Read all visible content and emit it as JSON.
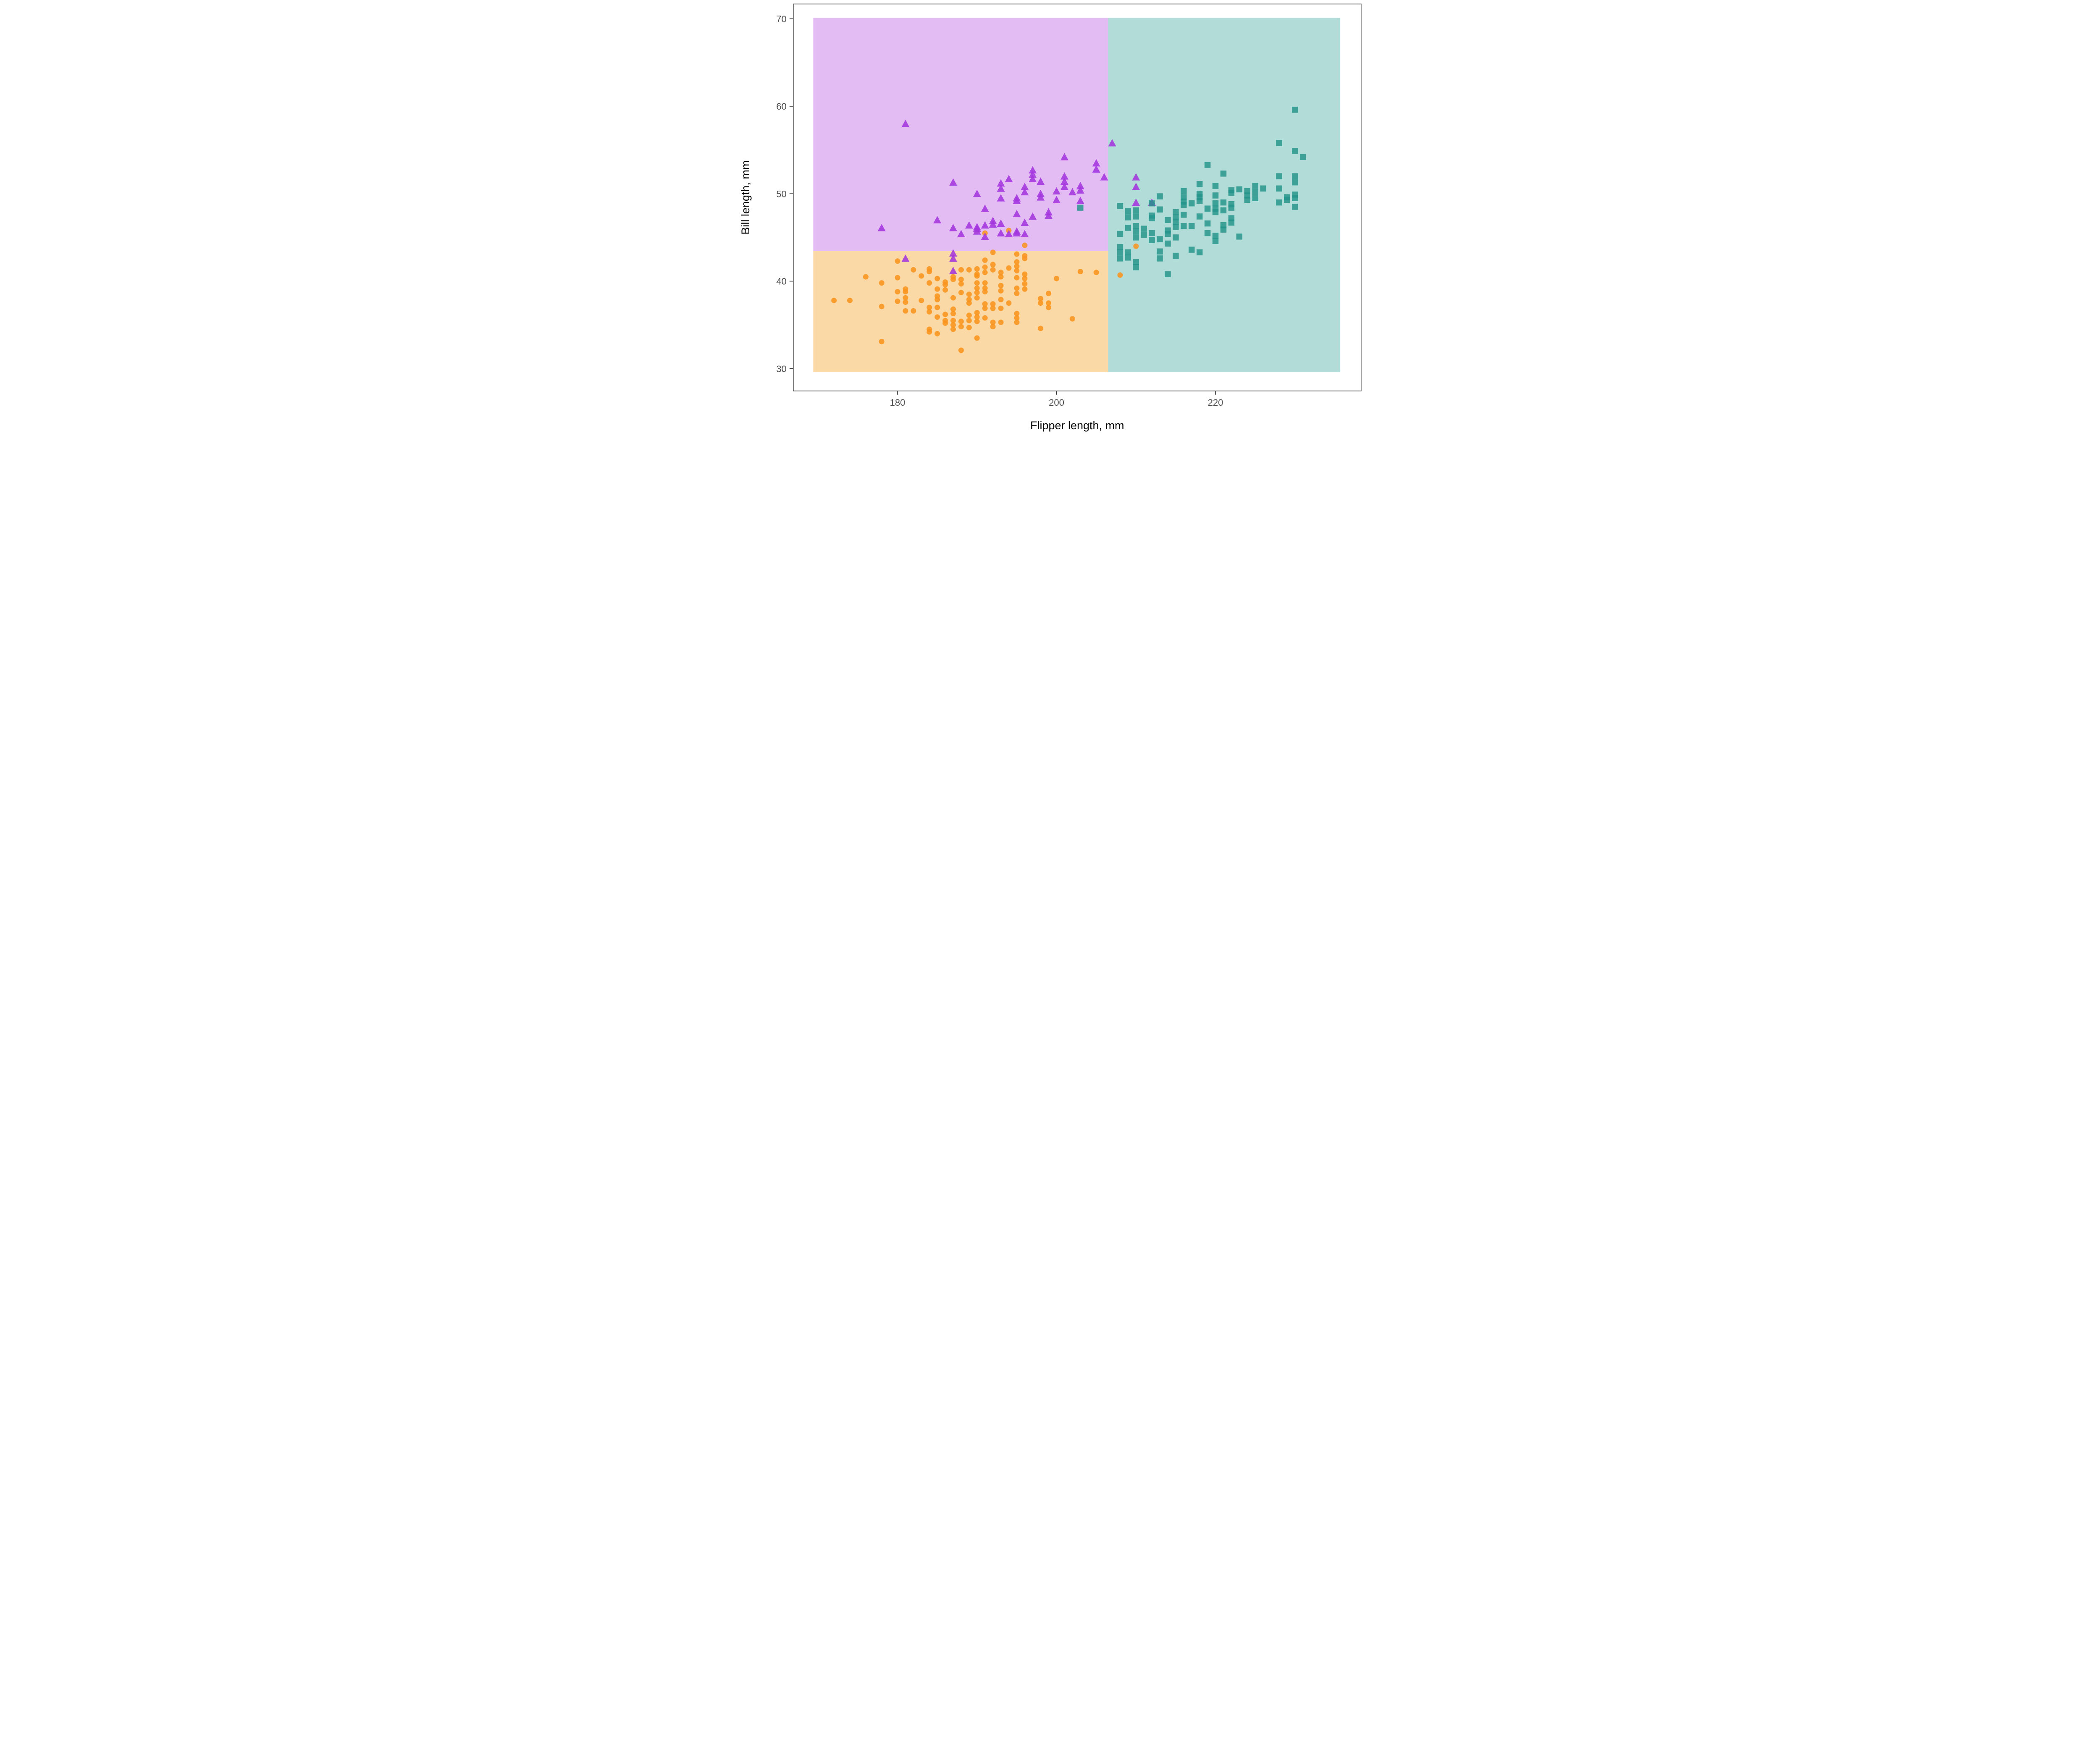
{
  "chart_data": {
    "type": "scatter",
    "title": "",
    "xlabel": "Flipper length, mm",
    "ylabel": "Bill length, mm",
    "x_ticks": [
      180,
      200,
      220
    ],
    "y_ticks": [
      70,
      60,
      50,
      40,
      30
    ],
    "xlim": [
      169.4,
      235.7
    ],
    "ylim": [
      29.6,
      70.1
    ],
    "grid": false,
    "legend": "none",
    "axis_text_color": "#4d4d4d",
    "axis_title_color": "#000000",
    "panel_border_color": "#333333",
    "decision_regions": [
      {
        "name": "purple-region",
        "color": "#E3BCF4",
        "x_min": 169.4,
        "x_max": 206.5,
        "y_min": 43.45,
        "y_max": 70.1
      },
      {
        "name": "orange-region",
        "color": "#FBD9A6",
        "x_min": 169.4,
        "x_max": 206.5,
        "y_min": 29.6,
        "y_max": 43.45
      },
      {
        "name": "teal-region",
        "color": "#B2DCD8",
        "x_min": 206.5,
        "x_max": 235.7,
        "y_min": 29.6,
        "y_max": 70.1
      }
    ],
    "series": [
      {
        "name": "orange-circles",
        "marker": "circle",
        "color": "#F8941E",
        "points": [
          [
            172,
            37.8
          ],
          [
            174,
            37.8
          ],
          [
            176,
            40.5
          ],
          [
            178,
            39.8
          ],
          [
            178,
            37.1
          ],
          [
            178,
            33.1
          ],
          [
            180,
            42.3
          ],
          [
            180,
            40.4
          ],
          [
            180,
            38.8
          ],
          [
            180,
            37.7
          ],
          [
            181,
            39.1
          ],
          [
            181,
            38.8
          ],
          [
            181,
            38.1
          ],
          [
            181,
            37.6
          ],
          [
            181,
            36.6
          ],
          [
            182,
            41.3
          ],
          [
            182,
            36.6
          ],
          [
            183,
            40.6
          ],
          [
            183,
            37.8
          ],
          [
            184,
            41.4
          ],
          [
            184,
            41.1
          ],
          [
            184,
            39.8
          ],
          [
            184,
            37.0
          ],
          [
            184,
            36.5
          ],
          [
            184,
            34.5
          ],
          [
            184,
            34.2
          ],
          [
            185,
            40.3
          ],
          [
            185,
            39.1
          ],
          [
            185,
            38.3
          ],
          [
            185,
            37.9
          ],
          [
            185,
            37.0
          ],
          [
            185,
            35.9
          ],
          [
            185,
            34.0
          ],
          [
            186,
            39.9
          ],
          [
            186,
            39.6
          ],
          [
            186,
            39.0
          ],
          [
            186,
            36.2
          ],
          [
            186,
            35.5
          ],
          [
            186,
            35.2
          ],
          [
            187,
            40.5
          ],
          [
            187,
            40.2
          ],
          [
            187,
            38.1
          ],
          [
            187,
            36.8
          ],
          [
            187,
            36.3
          ],
          [
            187,
            35.5
          ],
          [
            187,
            35.0
          ],
          [
            187,
            34.5
          ],
          [
            188,
            41.3
          ],
          [
            188,
            40.2
          ],
          [
            188,
            39.7
          ],
          [
            188,
            38.7
          ],
          [
            188,
            35.4
          ],
          [
            188,
            34.8
          ],
          [
            188,
            32.1
          ],
          [
            189,
            41.3
          ],
          [
            189,
            38.5
          ],
          [
            189,
            37.9
          ],
          [
            189,
            37.5
          ],
          [
            189,
            36.1
          ],
          [
            189,
            35.5
          ],
          [
            189,
            34.7
          ],
          [
            190,
            41.4
          ],
          [
            190,
            40.8
          ],
          [
            190,
            40.6
          ],
          [
            190,
            39.8
          ],
          [
            190,
            39.2
          ],
          [
            190,
            38.7
          ],
          [
            190,
            38.1
          ],
          [
            190,
            36.4
          ],
          [
            190,
            35.9
          ],
          [
            190,
            35.4
          ],
          [
            190,
            33.5
          ],
          [
            191,
            45.5
          ],
          [
            191,
            42.4
          ],
          [
            191,
            41.6
          ],
          [
            191,
            41.0
          ],
          [
            191,
            39.8
          ],
          [
            191,
            39.2
          ],
          [
            191,
            38.8
          ],
          [
            191,
            37.4
          ],
          [
            191,
            36.9
          ],
          [
            191,
            35.8
          ],
          [
            192,
            43.3
          ],
          [
            192,
            41.9
          ],
          [
            192,
            41.3
          ],
          [
            192,
            37.4
          ],
          [
            192,
            36.9
          ],
          [
            192,
            35.3
          ],
          [
            192,
            34.8
          ],
          [
            193,
            41.0
          ],
          [
            193,
            40.5
          ],
          [
            193,
            39.5
          ],
          [
            193,
            38.9
          ],
          [
            193,
            37.9
          ],
          [
            193,
            36.9
          ],
          [
            193,
            35.3
          ],
          [
            194,
            45.8
          ],
          [
            194,
            41.5
          ],
          [
            194,
            37.5
          ],
          [
            195,
            43.1
          ],
          [
            195,
            42.2
          ],
          [
            195,
            41.7
          ],
          [
            195,
            41.2
          ],
          [
            195,
            40.4
          ],
          [
            195,
            39.2
          ],
          [
            195,
            38.6
          ],
          [
            195,
            36.3
          ],
          [
            195,
            35.8
          ],
          [
            195,
            35.3
          ],
          [
            196,
            44.1
          ],
          [
            196,
            42.9
          ],
          [
            196,
            42.6
          ],
          [
            196,
            40.8
          ],
          [
            196,
            40.3
          ],
          [
            196,
            39.7
          ],
          [
            196,
            39.1
          ],
          [
            198,
            38.0
          ],
          [
            198,
            37.5
          ],
          [
            198,
            34.6
          ],
          [
            199,
            38.6
          ],
          [
            199,
            37.5
          ],
          [
            199,
            37.0
          ],
          [
            200,
            40.3
          ],
          [
            202,
            35.7
          ],
          [
            203,
            41.1
          ],
          [
            205,
            41.0
          ],
          [
            208,
            40.7
          ],
          [
            210,
            44.0
          ]
        ]
      },
      {
        "name": "purple-triangles",
        "marker": "triangle",
        "color": "#A436DE",
        "points": [
          [
            178,
            46.1
          ],
          [
            181,
            58.0
          ],
          [
            181,
            42.6
          ],
          [
            185,
            47.0
          ],
          [
            187,
            51.3
          ],
          [
            187,
            46.1
          ],
          [
            187,
            43.2
          ],
          [
            187,
            42.6
          ],
          [
            187,
            41.2
          ],
          [
            188,
            45.4
          ],
          [
            189,
            46.4
          ],
          [
            190,
            50.0
          ],
          [
            190,
            46.2
          ],
          [
            190,
            46.0
          ],
          [
            190,
            45.7
          ],
          [
            191,
            48.3
          ],
          [
            191,
            46.4
          ],
          [
            191,
            45.1
          ],
          [
            192,
            46.9
          ],
          [
            192,
            46.5
          ],
          [
            193,
            51.2
          ],
          [
            193,
            50.6
          ],
          [
            193,
            49.5
          ],
          [
            193,
            46.6
          ],
          [
            193,
            45.5
          ],
          [
            194,
            51.7
          ],
          [
            194,
            45.4
          ],
          [
            195,
            49.5
          ],
          [
            195,
            49.2
          ],
          [
            195,
            47.7
          ],
          [
            195,
            45.7
          ],
          [
            195,
            45.5
          ],
          [
            196,
            50.8
          ],
          [
            196,
            50.2
          ],
          [
            196,
            46.7
          ],
          [
            196,
            45.4
          ],
          [
            197,
            52.7
          ],
          [
            197,
            52.2
          ],
          [
            197,
            51.7
          ],
          [
            197,
            47.4
          ],
          [
            198,
            51.4
          ],
          [
            198,
            50.0
          ],
          [
            198,
            49.6
          ],
          [
            199,
            47.9
          ],
          [
            199,
            47.5
          ],
          [
            200,
            50.3
          ],
          [
            200,
            49.3
          ],
          [
            201,
            54.2
          ],
          [
            201,
            52.0
          ],
          [
            201,
            51.4
          ],
          [
            201,
            50.8
          ],
          [
            202,
            50.2
          ],
          [
            203,
            50.9
          ],
          [
            203,
            50.4
          ],
          [
            203,
            49.2
          ],
          [
            205,
            53.5
          ],
          [
            205,
            52.8
          ],
          [
            206,
            51.9
          ],
          [
            207,
            55.8
          ],
          [
            210,
            51.9
          ],
          [
            210,
            50.8
          ],
          [
            210,
            49.0
          ],
          [
            212,
            49.0
          ]
        ]
      },
      {
        "name": "teal-squares",
        "marker": "square",
        "color": "#23948A",
        "points": [
          [
            203,
            48.4
          ],
          [
            208,
            48.6
          ],
          [
            208,
            45.4
          ],
          [
            208,
            43.9
          ],
          [
            208,
            43.3
          ],
          [
            208,
            42.6
          ],
          [
            209,
            48.0
          ],
          [
            209,
            47.3
          ],
          [
            209,
            46.1
          ],
          [
            209,
            43.3
          ],
          [
            209,
            42.7
          ],
          [
            210,
            48.1
          ],
          [
            210,
            47.4
          ],
          [
            210,
            46.3
          ],
          [
            210,
            45.7
          ],
          [
            210,
            45.0
          ],
          [
            210,
            42.2
          ],
          [
            210,
            41.6
          ],
          [
            211,
            46.0
          ],
          [
            211,
            45.3
          ],
          [
            212,
            48.9
          ],
          [
            212,
            47.5
          ],
          [
            212,
            47.2
          ],
          [
            212,
            45.5
          ],
          [
            212,
            44.7
          ],
          [
            213,
            49.7
          ],
          [
            213,
            48.2
          ],
          [
            213,
            44.8
          ],
          [
            213,
            43.4
          ],
          [
            213,
            42.6
          ],
          [
            214,
            47.0
          ],
          [
            214,
            45.8
          ],
          [
            214,
            45.4
          ],
          [
            214,
            44.3
          ],
          [
            214,
            40.8
          ],
          [
            215,
            47.9
          ],
          [
            215,
            47.3
          ],
          [
            215,
            46.8
          ],
          [
            215,
            46.2
          ],
          [
            215,
            45.0
          ],
          [
            215,
            42.9
          ],
          [
            216,
            50.3
          ],
          [
            216,
            49.6
          ],
          [
            216,
            49.1
          ],
          [
            216,
            48.7
          ],
          [
            216,
            47.6
          ],
          [
            216,
            46.3
          ],
          [
            217,
            48.9
          ],
          [
            217,
            46.3
          ],
          [
            217,
            43.6
          ],
          [
            218,
            51.1
          ],
          [
            218,
            50.0
          ],
          [
            218,
            49.6
          ],
          [
            218,
            49.2
          ],
          [
            218,
            47.4
          ],
          [
            218,
            43.3
          ],
          [
            219,
            53.3
          ],
          [
            219,
            48.3
          ],
          [
            219,
            46.6
          ],
          [
            219,
            45.5
          ],
          [
            220,
            50.9
          ],
          [
            220,
            49.8
          ],
          [
            220,
            48.9
          ],
          [
            220,
            48.3
          ],
          [
            220,
            47.9
          ],
          [
            220,
            45.2
          ],
          [
            220,
            44.6
          ],
          [
            221,
            52.3
          ],
          [
            221,
            49.0
          ],
          [
            221,
            48.1
          ],
          [
            221,
            46.4
          ],
          [
            221,
            45.9
          ],
          [
            222,
            50.4
          ],
          [
            222,
            50.1
          ],
          [
            222,
            48.8
          ],
          [
            222,
            48.4
          ],
          [
            222,
            47.2
          ],
          [
            222,
            46.7
          ],
          [
            223,
            50.5
          ],
          [
            223,
            45.1
          ],
          [
            224,
            50.3
          ],
          [
            224,
            49.8
          ],
          [
            224,
            49.3
          ],
          [
            225,
            50.9
          ],
          [
            225,
            50.2
          ],
          [
            225,
            49.5
          ],
          [
            226,
            50.6
          ],
          [
            228,
            55.8
          ],
          [
            228,
            52.0
          ],
          [
            228,
            50.6
          ],
          [
            228,
            49.0
          ],
          [
            229,
            49.6
          ],
          [
            229,
            49.3
          ],
          [
            230,
            59.6
          ],
          [
            230,
            54.9
          ],
          [
            230,
            52.0
          ],
          [
            230,
            51.3
          ],
          [
            230,
            49.9
          ],
          [
            230,
            49.5
          ],
          [
            230,
            48.5
          ],
          [
            231,
            54.2
          ]
        ]
      }
    ]
  },
  "axes": {
    "x_title": "Flipper length, mm",
    "y_title": "Bill length, mm",
    "x_tick_labels": [
      "180",
      "200",
      "220"
    ],
    "y_tick_labels": [
      "70",
      "60",
      "50",
      "40",
      "30"
    ]
  }
}
